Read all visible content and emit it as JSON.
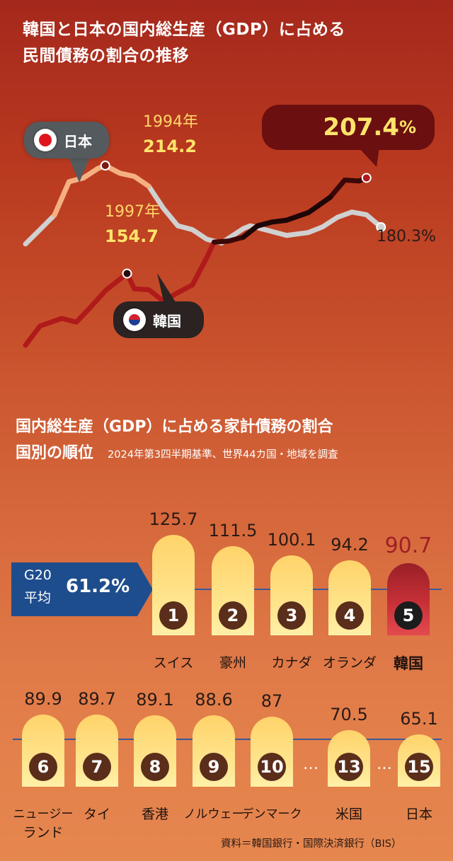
{
  "chart_data": [
    {
      "type": "line",
      "title": "韓国と日本の国内総生産（GDP）に占める民間債務の割合の推移",
      "series": [
        {
          "name": "日本",
          "color": "#d0d0d0",
          "highlight_color": "#f6b080",
          "points": [
            [
              0,
              171.0
            ],
            [
              2,
              178.9
            ],
            [
              4,
              186.9
            ],
            [
              6,
              205.3
            ],
            [
              8,
              207.4
            ],
            [
              10,
              212.6
            ],
            [
              11,
              214.2
            ],
            [
              13,
              210.0
            ],
            [
              15,
              208.2
            ],
            [
              17,
              202.8
            ],
            [
              19,
              190.7
            ],
            [
              21,
              181.0
            ],
            [
              23,
              178.9
            ],
            [
              25,
              173.6
            ],
            [
              27,
              171.5
            ],
            [
              30,
              179.4
            ],
            [
              31,
              181.0
            ],
            [
              33,
              178.9
            ],
            [
              36,
              175.7
            ],
            [
              39,
              177.3
            ],
            [
              41,
              180.5
            ],
            [
              43,
              185.7
            ],
            [
              45,
              188.6
            ],
            [
              47,
              187.1
            ],
            [
              49,
              180.3
            ]
          ],
          "highlight_range": [
            4,
            18
          ]
        },
        {
          "name": "韓国",
          "color": "#b01a1a",
          "highlight_color": "#f0a070",
          "points": [
            [
              0,
              115.2
            ],
            [
              2,
              125.8
            ],
            [
              5,
              130.0
            ],
            [
              7,
              127.9
            ],
            [
              9,
              136.3
            ],
            [
              11,
              145.2
            ],
            [
              12,
              148.4
            ],
            [
              14,
              154.7
            ],
            [
              15,
              146.3
            ],
            [
              17,
              145.8
            ],
            [
              19,
              139.5
            ],
            [
              21,
              144.2
            ],
            [
              23,
              148.4
            ],
            [
              25,
              163.6
            ],
            [
              26,
              172.0
            ],
            [
              28,
              172.6
            ],
            [
              30,
              174.7
            ],
            [
              32,
              181.0
            ],
            [
              34,
              183.1
            ],
            [
              36,
              184.1
            ],
            [
              39,
              188.3
            ],
            [
              42,
              196.7
            ],
            [
              44,
              206.2
            ],
            [
              46,
              205.7
            ],
            [
              47,
              207.4
            ]
          ]
        }
      ],
      "annotations": [
        {
          "series": "日本",
          "year_label": "1994年",
          "value_label": "214.2",
          "point_index": 6
        },
        {
          "series": "韓国",
          "year_label": "1997年",
          "value_label": "154.7",
          "point_index": 7
        }
      ],
      "end_labels": {
        "korea": "207.4",
        "korea_unit": "%",
        "japan": "180.3%"
      },
      "legend": [
        {
          "name": "日本",
          "icon": "japan-flag-icon"
        },
        {
          "name": "韓国",
          "icon": "korea-flag-icon"
        }
      ]
    },
    {
      "type": "bar",
      "title": "国内総生産（GDP）に占める家計債務の割合 国別の順位",
      "subtitle": "2024年第3四半期基準、世界44カ国・地域を調査",
      "reference_line": {
        "label_1": "G20",
        "label_2": "平均",
        "value": 61.2,
        "value_label": "61.2%"
      },
      "rows": [
        [
          {
            "rank": "1",
            "country": "スイス",
            "value": 125.7,
            "value_label": "125.7"
          },
          {
            "rank": "2",
            "country": "豪州",
            "value": 111.5,
            "value_label": "111.5"
          },
          {
            "rank": "3",
            "country": "カナダ",
            "value": 100.1,
            "value_label": "100.1"
          },
          {
            "rank": "4",
            "country": "オランダ",
            "value": 94.2,
            "value_label": "94.2"
          },
          {
            "rank": "5",
            "country": "韓国",
            "value": 90.7,
            "value_label": "90.7",
            "highlight": true
          }
        ],
        [
          {
            "rank": "6",
            "country": "ニュージーランド",
            "country_lines": [
              "ニュージー",
              "ランド"
            ],
            "value": 89.9,
            "value_label": "89.9"
          },
          {
            "rank": "7",
            "country": "タイ",
            "value": 89.7,
            "value_label": "89.7"
          },
          {
            "rank": "8",
            "country": "香港",
            "value": 89.1,
            "value_label": "89.1"
          },
          {
            "rank": "9",
            "country": "ノルウェー",
            "value": 88.6,
            "value_label": "88.6"
          },
          {
            "rank": "10",
            "country": "デンマーク",
            "value": 87,
            "value_label": "87"
          },
          {
            "rank": "13",
            "country": "米国",
            "value": 70.5,
            "value_label": "70.5"
          },
          {
            "rank": "15",
            "country": "日本",
            "value": 65.1,
            "value_label": "65.1"
          }
        ]
      ],
      "ellipsis": "…",
      "colors": {
        "bar": "#ffd36a",
        "highlight": "#b8242c",
        "rank_badge": "#5a2e1a",
        "highlight_badge": "#1c1c1c",
        "reference": "#1e4d8d"
      }
    }
  ],
  "header": {
    "title_line1": "韓国と日本の国内総生産（GDP）に占める",
    "title_line2": "民間債務の割合の推移"
  },
  "section2": {
    "title_line1": "国内総生産（GDP）に占める家計債務の割合",
    "title_line2": "国別の順位",
    "subtitle": "2024年第3四半期基準、世界44カ国・地域を調査"
  },
  "source": "資料＝韓国銀行・国際決済銀行（BIS）"
}
